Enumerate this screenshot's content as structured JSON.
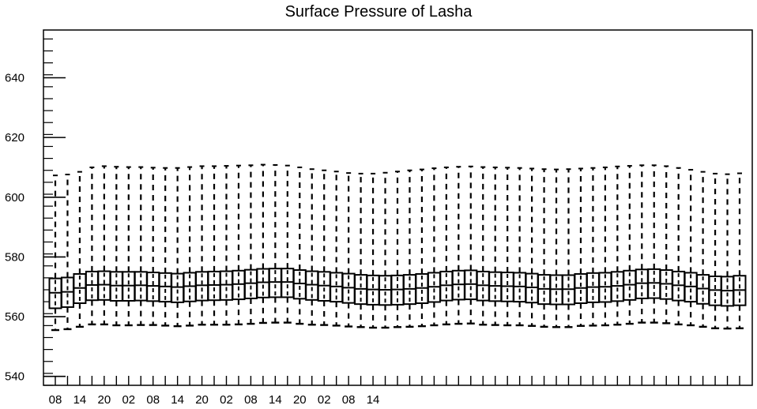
{
  "chart_data": {
    "type": "boxplot",
    "title": "Surface Pressure of Lasha",
    "xlabel": "",
    "ylabel": "",
    "ylim": [
      537,
      656
    ],
    "yticks": [
      540,
      560,
      580,
      600,
      620,
      640
    ],
    "ytick_labels": [
      "540",
      "560",
      "580",
      "600",
      "620",
      "640"
    ],
    "xticks": [
      0,
      6,
      12,
      18,
      24,
      30,
      36,
      42,
      48,
      54,
      60,
      66,
      72,
      78
    ],
    "xtick_labels": [
      "08",
      "14",
      "20",
      "02",
      "08",
      "14",
      "20",
      "02",
      "08",
      "14",
      "20",
      "02",
      "08",
      "14"
    ],
    "x_step_hours": 3,
    "grid": false,
    "series": [
      {
        "x": [
          0,
          3,
          6,
          9,
          12,
          15,
          18,
          21,
          24,
          27,
          30,
          33,
          36,
          39,
          42,
          45,
          48,
          51,
          54,
          57,
          60,
          63,
          66,
          69,
          72,
          75,
          78,
          81,
          84,
          87,
          90,
          93,
          96,
          99,
          102,
          105,
          108,
          111,
          114,
          117,
          120,
          123,
          126,
          129,
          132,
          135,
          138,
          141,
          144,
          147,
          150,
          153,
          156,
          159,
          162,
          165,
          168
        ],
        "min": [
          555.5,
          555.8,
          556.6,
          557.4,
          557.4,
          557.1,
          557.1,
          557.2,
          557.2,
          557.0,
          556.8,
          557.0,
          557.3,
          557.3,
          557.3,
          557.4,
          557.6,
          557.9,
          558.0,
          558.0,
          557.6,
          557.3,
          557.2,
          557.0,
          556.7,
          556.5,
          556.3,
          556.3,
          556.5,
          556.6,
          556.8,
          557.1,
          557.4,
          557.6,
          557.7,
          557.3,
          557.2,
          557.1,
          557.1,
          556.9,
          556.6,
          556.5,
          556.5,
          556.9,
          557.0,
          557.1,
          557.3,
          557.6,
          558.0,
          558.0,
          557.8,
          557.4,
          557.1,
          556.6,
          556.1,
          556.0,
          556.1
        ],
        "q1": [
          562.8,
          563.2,
          564.5,
          565.5,
          565.6,
          565.3,
          565.3,
          565.4,
          565.2,
          565.0,
          564.8,
          565.1,
          565.4,
          565.5,
          565.6,
          565.8,
          566.1,
          566.4,
          566.5,
          566.5,
          566.0,
          565.6,
          565.3,
          565.0,
          564.6,
          564.2,
          564.0,
          563.9,
          564.0,
          564.2,
          564.5,
          564.9,
          565.4,
          565.7,
          565.8,
          565.4,
          565.2,
          565.1,
          565.0,
          564.7,
          564.2,
          564.1,
          564.1,
          564.5,
          564.8,
          564.9,
          565.2,
          565.6,
          566.1,
          566.2,
          565.9,
          565.4,
          565.0,
          564.3,
          563.8,
          563.6,
          563.8
        ],
        "median": [
          568.0,
          568.3,
          569.6,
          570.6,
          570.7,
          570.4,
          570.4,
          570.5,
          570.3,
          570.1,
          569.9,
          570.2,
          570.5,
          570.6,
          570.7,
          570.9,
          571.2,
          571.5,
          571.6,
          571.6,
          571.1,
          570.7,
          570.4,
          570.1,
          569.7,
          569.3,
          569.1,
          569.0,
          569.1,
          569.3,
          569.6,
          570.0,
          570.5,
          570.8,
          570.9,
          570.5,
          570.3,
          570.2,
          570.1,
          569.8,
          569.3,
          569.2,
          569.2,
          569.6,
          569.9,
          570.0,
          570.3,
          570.7,
          571.2,
          571.3,
          571.0,
          570.5,
          570.1,
          569.4,
          568.9,
          568.7,
          568.9
        ],
        "q3": [
          572.8,
          573.1,
          574.3,
          575.1,
          575.2,
          575.0,
          575.0,
          575.0,
          574.8,
          574.6,
          574.4,
          574.7,
          575.0,
          575.1,
          575.2,
          575.4,
          575.7,
          576.0,
          576.1,
          576.1,
          575.6,
          575.2,
          575.0,
          574.7,
          574.4,
          574.0,
          573.8,
          573.7,
          573.8,
          574.0,
          574.3,
          574.7,
          575.1,
          575.4,
          575.5,
          575.1,
          574.9,
          574.8,
          574.7,
          574.4,
          574.0,
          573.9,
          573.9,
          574.3,
          574.6,
          574.7,
          575.0,
          575.4,
          575.8,
          575.9,
          575.6,
          575.1,
          574.7,
          574.0,
          573.5,
          573.4,
          573.7
        ],
        "max": [
          607.3,
          607.6,
          608.5,
          610.0,
          610.4,
          610.2,
          610.1,
          610.1,
          609.9,
          609.8,
          609.8,
          610.1,
          610.4,
          610.4,
          610.5,
          610.6,
          610.7,
          610.9,
          610.8,
          610.6,
          610.0,
          609.4,
          609.0,
          608.6,
          608.1,
          607.9,
          607.9,
          608.2,
          608.6,
          609.0,
          609.3,
          609.7,
          610.0,
          610.2,
          610.3,
          610.1,
          610.0,
          609.9,
          609.8,
          609.6,
          609.4,
          609.3,
          609.4,
          609.6,
          609.8,
          610.0,
          610.3,
          610.5,
          610.7,
          610.7,
          610.4,
          609.8,
          609.2,
          608.5,
          607.9,
          607.7,
          608.0
        ]
      }
    ]
  }
}
